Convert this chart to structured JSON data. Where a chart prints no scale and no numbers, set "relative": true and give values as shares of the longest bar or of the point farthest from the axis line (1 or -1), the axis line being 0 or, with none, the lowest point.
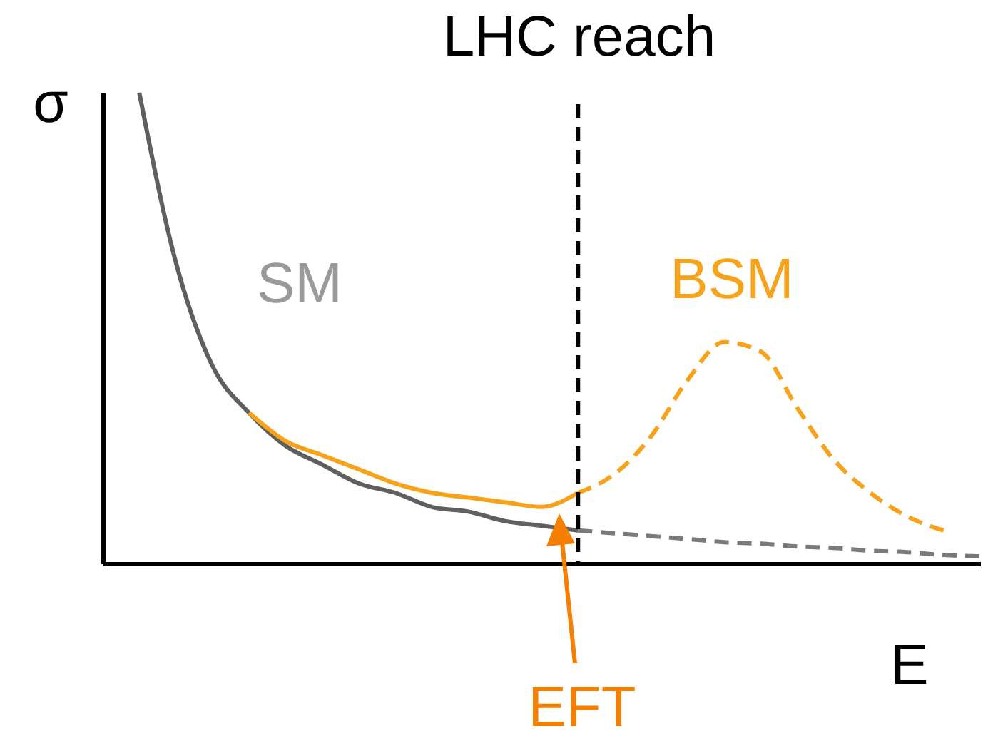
{
  "chart_data": {
    "type": "line",
    "relative": true,
    "xlabel": "E",
    "ylabel": "σ",
    "marker": "none",
    "categories": [
      null,
      null,
      null,
      null,
      null,
      null,
      null,
      null,
      null,
      null,
      null,
      null,
      null,
      null,
      null,
      null,
      null,
      null,
      null,
      null,
      null,
      null,
      null,
      null,
      null
    ],
    "series": [
      {
        "name": "SM",
        "color": "#5f5f5f",
        "line_style": "solid",
        "values": [
          null,
          1,
          0.64,
          0.42,
          0.32,
          0.25,
          0.21,
          0.17,
          0.15,
          0.12,
          0.11,
          0.09,
          0.08,
          0.07,
          null,
          null,
          null,
          null,
          null,
          null,
          null,
          null,
          null,
          null,
          null
        ]
      },
      {
        "color": "#7a7a7a",
        "line_style": "dashed",
        "values": [
          null,
          null,
          null,
          null,
          null,
          null,
          null,
          null,
          null,
          null,
          null,
          null,
          null,
          0.07,
          0.064,
          0.058,
          0.052,
          0.045,
          0.042,
          0.036,
          0.033,
          0.027,
          0.024,
          0.018,
          0.015
        ]
      },
      {
        "color": "#f7a21b",
        "line_style": "solid",
        "values": [
          null,
          null,
          null,
          null,
          0.32,
          0.26,
          0.23,
          0.2,
          0.17,
          0.15,
          0.14,
          0.13,
          0.12,
          0.15,
          null,
          null,
          null,
          null,
          null,
          null,
          null,
          null,
          null,
          null,
          null
        ]
      },
      {
        "name": "BSM",
        "color": "#f7a21b",
        "line_style": "dashed",
        "values": [
          null,
          null,
          null,
          null,
          null,
          null,
          null,
          null,
          null,
          null,
          null,
          null,
          null,
          0.15,
          0.19,
          0.27,
          0.39,
          0.47,
          0.45,
          0.33,
          0.22,
          0.15,
          0.1,
          0.07,
          null
        ]
      }
    ],
    "annotations": [
      "LHC reach",
      "EFT"
    ]
  }
}
